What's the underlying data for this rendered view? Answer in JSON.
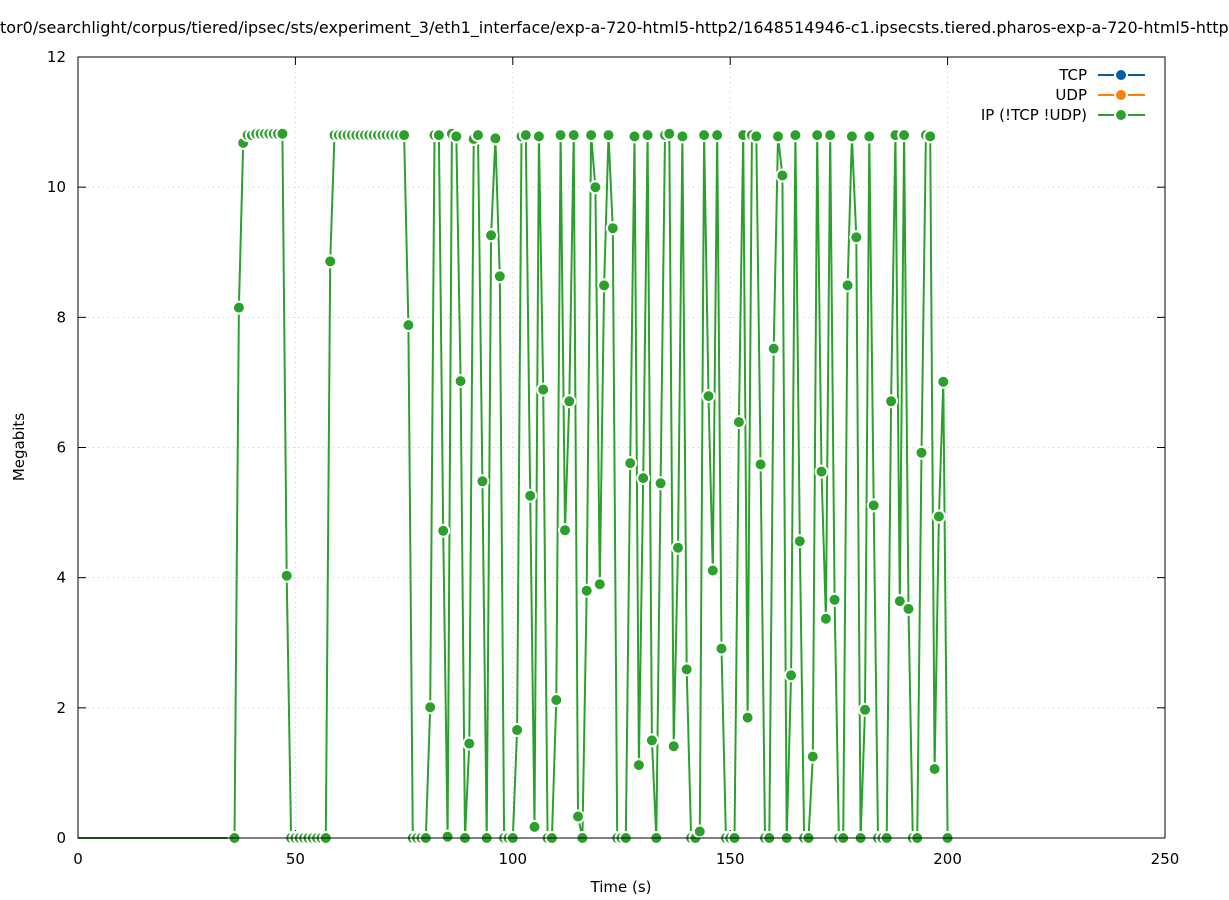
{
  "chart_data": {
    "type": "line",
    "title": "tor0/searchlight/corpus/tiered/ipsec/sts/experiment_3/eth1_interface/exp-a-720-html5-http2/1648514946-c1.ipsecsts.tiered.pharos-exp-a-720-html5-http",
    "xlabel": "Time (s)",
    "ylabel": "Megabits",
    "xlim": [
      0,
      250
    ],
    "ylim": [
      0,
      12
    ],
    "x_ticks": [
      0,
      50,
      100,
      150,
      200,
      250
    ],
    "y_ticks": [
      0,
      2,
      4,
      6,
      8,
      10,
      12
    ],
    "grid": true,
    "legend_position": "top-right",
    "colors": {
      "tcp": "#0060ad",
      "udp": "#ff7f0e",
      "ip": "#2ca02c"
    },
    "series": [
      {
        "name": "TCP",
        "key": "tcp",
        "points": []
      },
      {
        "name": "UDP",
        "key": "udp",
        "points": []
      },
      {
        "name": "IP (!TCP  !UDP)",
        "key": "ip",
        "points": [
          [
            0,
            0
          ],
          [
            1,
            0
          ],
          [
            2,
            0
          ],
          [
            3,
            0
          ],
          [
            4,
            0
          ],
          [
            5,
            0
          ],
          [
            6,
            0
          ],
          [
            7,
            0
          ],
          [
            8,
            0
          ],
          [
            9,
            0
          ],
          [
            10,
            0
          ],
          [
            11,
            0
          ],
          [
            12,
            0
          ],
          [
            13,
            0
          ],
          [
            14,
            0
          ],
          [
            15,
            0
          ],
          [
            16,
            0
          ],
          [
            17,
            0
          ],
          [
            18,
            0
          ],
          [
            19,
            0
          ],
          [
            20,
            0
          ],
          [
            21,
            0
          ],
          [
            22,
            0
          ],
          [
            23,
            0
          ],
          [
            24,
            0
          ],
          [
            25,
            0
          ],
          [
            26,
            0
          ],
          [
            27,
            0
          ],
          [
            28,
            0
          ],
          [
            29,
            0
          ],
          [
            30,
            0
          ],
          [
            31,
            0
          ],
          [
            32,
            0
          ],
          [
            33,
            0
          ],
          [
            34,
            0
          ],
          [
            35,
            0
          ],
          [
            36,
            0
          ],
          [
            37,
            8.15
          ],
          [
            38,
            10.68
          ],
          [
            39,
            10.8
          ],
          [
            40,
            10.8
          ],
          [
            41,
            10.82
          ],
          [
            42,
            10.82
          ],
          [
            43,
            10.82
          ],
          [
            44,
            10.82
          ],
          [
            45,
            10.82
          ],
          [
            46,
            10.82
          ],
          [
            47,
            10.82
          ],
          [
            48,
            4.03
          ],
          [
            49,
            0
          ],
          [
            50,
            0
          ],
          [
            51,
            0
          ],
          [
            52,
            0
          ],
          [
            53,
            0
          ],
          [
            54,
            0
          ],
          [
            55,
            0
          ],
          [
            56,
            0
          ],
          [
            57,
            0
          ],
          [
            58,
            8.86
          ],
          [
            59,
            10.8
          ],
          [
            60,
            10.8
          ],
          [
            61,
            10.8
          ],
          [
            62,
            10.8
          ],
          [
            63,
            10.8
          ],
          [
            64,
            10.8
          ],
          [
            65,
            10.8
          ],
          [
            66,
            10.8
          ],
          [
            67,
            10.8
          ],
          [
            68,
            10.8
          ],
          [
            69,
            10.8
          ],
          [
            70,
            10.8
          ],
          [
            71,
            10.8
          ],
          [
            72,
            10.8
          ],
          [
            73,
            10.8
          ],
          [
            74,
            10.8
          ],
          [
            75,
            10.8
          ],
          [
            76,
            7.88
          ],
          [
            77,
            0
          ],
          [
            78,
            0
          ],
          [
            79,
            0
          ],
          [
            80,
            0
          ],
          [
            81,
            2.01
          ],
          [
            82,
            10.8
          ],
          [
            83,
            10.8
          ],
          [
            84,
            4.72
          ],
          [
            85,
            0.02
          ],
          [
            86,
            10.82
          ],
          [
            87,
            10.78
          ],
          [
            88,
            7.02
          ],
          [
            89,
            0
          ],
          [
            90,
            1.45
          ],
          [
            91,
            10.74
          ],
          [
            92,
            10.8
          ],
          [
            93,
            5.48
          ],
          [
            94,
            0
          ],
          [
            95,
            9.26
          ],
          [
            96,
            10.75
          ],
          [
            97,
            8.63
          ],
          [
            98,
            0
          ],
          [
            99,
            0
          ],
          [
            100,
            0
          ],
          [
            101,
            1.66
          ],
          [
            102,
            10.78
          ],
          [
            103,
            10.8
          ],
          [
            104,
            5.26
          ],
          [
            105,
            0.17
          ],
          [
            106,
            10.78
          ],
          [
            107,
            6.89
          ],
          [
            108,
            0
          ],
          [
            109,
            0
          ],
          [
            110,
            2.12
          ],
          [
            111,
            10.8
          ],
          [
            112,
            4.73
          ],
          [
            113,
            6.71
          ],
          [
            114,
            10.8
          ],
          [
            115,
            0.33
          ],
          [
            116,
            0
          ],
          [
            117,
            3.8
          ],
          [
            118,
            10.8
          ],
          [
            119,
            10
          ],
          [
            120,
            3.9
          ],
          [
            121,
            8.49
          ],
          [
            122,
            10.8
          ],
          [
            123,
            9.37
          ],
          [
            124,
            0
          ],
          [
            125,
            0
          ],
          [
            126,
            0
          ],
          [
            127,
            5.76
          ],
          [
            128,
            10.78
          ],
          [
            129,
            1.12
          ],
          [
            130,
            5.53
          ],
          [
            131,
            10.8
          ],
          [
            132,
            1.5
          ],
          [
            133,
            0
          ],
          [
            134,
            5.45
          ],
          [
            135,
            10.8
          ],
          [
            136,
            10.82
          ],
          [
            137,
            1.41
          ],
          [
            138,
            4.46
          ],
          [
            139,
            10.78
          ],
          [
            140,
            2.59
          ],
          [
            141,
            0
          ],
          [
            142,
            0
          ],
          [
            143,
            0.1
          ],
          [
            144,
            10.8
          ],
          [
            145,
            6.79
          ],
          [
            146,
            4.11
          ],
          [
            147,
            10.8
          ],
          [
            148,
            2.91
          ],
          [
            149,
            0
          ],
          [
            150,
            0
          ],
          [
            151,
            0
          ],
          [
            152,
            6.39
          ],
          [
            153,
            10.8
          ],
          [
            154,
            1.85
          ],
          [
            155,
            10.8
          ],
          [
            156,
            10.78
          ],
          [
            157,
            5.74
          ],
          [
            158,
            0
          ],
          [
            159,
            0
          ],
          [
            160,
            7.52
          ],
          [
            161,
            10.78
          ],
          [
            162,
            10.18
          ],
          [
            163,
            0
          ],
          [
            164,
            2.5
          ],
          [
            165,
            10.8
          ],
          [
            166,
            4.56
          ],
          [
            167,
            0
          ],
          [
            168,
            0
          ],
          [
            169,
            1.25
          ],
          [
            170,
            10.8
          ],
          [
            171,
            5.63
          ],
          [
            172,
            3.37
          ],
          [
            173,
            10.8
          ],
          [
            174,
            3.66
          ],
          [
            175,
            0
          ],
          [
            176,
            0
          ],
          [
            177,
            8.49
          ],
          [
            178,
            10.78
          ],
          [
            179,
            9.23
          ],
          [
            180,
            0
          ],
          [
            181,
            1.97
          ],
          [
            182,
            10.78
          ],
          [
            183,
            5.11
          ],
          [
            184,
            0
          ],
          [
            185,
            0
          ],
          [
            186,
            0
          ],
          [
            187,
            6.71
          ],
          [
            188,
            10.8
          ],
          [
            189,
            3.64
          ],
          [
            190,
            10.8
          ],
          [
            191,
            3.52
          ],
          [
            192,
            0
          ],
          [
            193,
            0
          ],
          [
            194,
            5.92
          ],
          [
            195,
            10.8
          ],
          [
            196,
            10.78
          ],
          [
            197,
            1.06
          ],
          [
            198,
            4.94
          ],
          [
            199,
            7.01
          ],
          [
            200,
            0
          ]
        ]
      }
    ]
  }
}
